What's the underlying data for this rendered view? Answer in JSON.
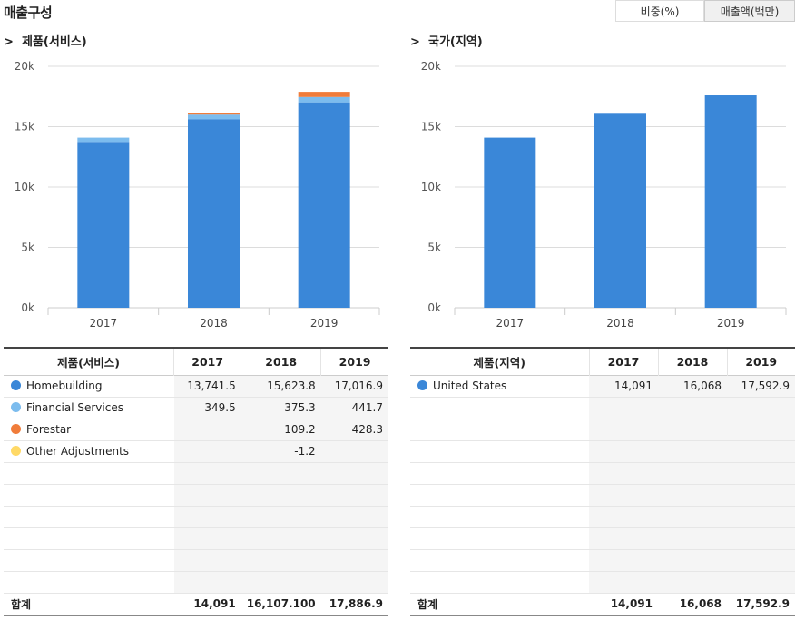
{
  "page": {
    "title": "매출구성"
  },
  "toggles": [
    {
      "label": "비중(%)"
    },
    {
      "label": "매출액(백만)"
    }
  ],
  "left_section": {
    "title": "제품(서비스)",
    "arrow": ">"
  },
  "right_section": {
    "title": "국가(지역)",
    "arrow": ">"
  },
  "chart_data": [
    {
      "type": "bar",
      "stacked": true,
      "categories": [
        "2017",
        "2018",
        "2019"
      ],
      "ylim": [
        0,
        20000
      ],
      "yticks": [
        "0k",
        "5k",
        "10k",
        "15k",
        "20k"
      ],
      "series": [
        {
          "name": "Homebuilding",
          "color": "#3a87d8",
          "values": [
            13741.5,
            15623.8,
            17016.9
          ]
        },
        {
          "name": "Financial Services",
          "color": "#7cbcee",
          "values": [
            349.5,
            375.3,
            441.7
          ]
        },
        {
          "name": "Forestar",
          "color": "#f07c3a",
          "values": [
            0,
            109.2,
            428.3
          ]
        },
        {
          "name": "Other Adjustments",
          "color": "#ffd966",
          "values": [
            0,
            -1.2,
            0
          ]
        }
      ]
    },
    {
      "type": "bar",
      "categories": [
        "2017",
        "2018",
        "2019"
      ],
      "ylim": [
        0,
        20000
      ],
      "yticks": [
        "0k",
        "5k",
        "10k",
        "15k",
        "20k"
      ],
      "series": [
        {
          "name": "United States",
          "color": "#3a87d8",
          "values": [
            14091,
            16068,
            17592.9
          ]
        }
      ]
    }
  ],
  "left_table": {
    "headers": [
      "제품(서비스)",
      "2017",
      "2018",
      "2019"
    ],
    "rows": [
      {
        "name": "Homebuilding",
        "color": "#3a87d8",
        "cells": [
          "13,741.5",
          "15,623.8",
          "17,016.9"
        ]
      },
      {
        "name": "Financial Services",
        "color": "#7cbcee",
        "cells": [
          "349.5",
          "375.3",
          "441.7"
        ]
      },
      {
        "name": "Forestar",
        "color": "#f07c3a",
        "cells": [
          "",
          "109.2",
          "428.3"
        ]
      },
      {
        "name": "Other Adjustments",
        "color": "#ffd966",
        "cells": [
          "",
          "-1.2",
          ""
        ]
      }
    ],
    "total": {
      "label": "합계",
      "cells": [
        "14,091",
        "16,107.100",
        "17,886.9"
      ]
    }
  },
  "right_table": {
    "headers": [
      "제품(지역)",
      "2017",
      "2018",
      "2019"
    ],
    "rows": [
      {
        "name": "United States",
        "color": "#3a87d8",
        "cells": [
          "14,091",
          "16,068",
          "17,592.9"
        ]
      }
    ],
    "total": {
      "label": "합계",
      "cells": [
        "14,091",
        "16,068",
        "17,592.9"
      ]
    }
  }
}
